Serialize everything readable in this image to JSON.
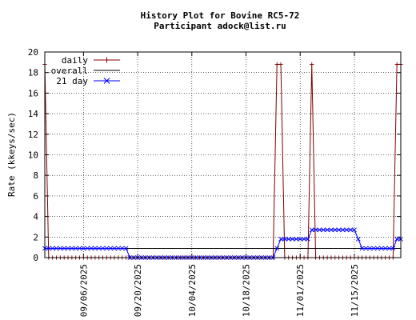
{
  "chart_data": {
    "type": "line",
    "title": "History Plot for Bovine RC5-72",
    "subtitle": "Participant adock@list.ru",
    "xlabel": "",
    "ylabel": "Rate (kkeys/sec)",
    "x_type": "date",
    "xlim": [
      "2025-08-27",
      "2025-11-27"
    ],
    "ylim": [
      0,
      20
    ],
    "y_ticks": [
      "0",
      "2",
      "4",
      "6",
      "8",
      "10",
      "12",
      "14",
      "16",
      "18",
      "20"
    ],
    "x_ticks": [
      {
        "date": "2025-09-06",
        "label": "09/06/2025"
      },
      {
        "date": "2025-09-20",
        "label": "09/20/2025"
      },
      {
        "date": "2025-10-04",
        "label": "10/04/2025"
      },
      {
        "date": "2025-10-18",
        "label": "10/18/2025"
      },
      {
        "date": "2025-11-01",
        "label": "11/01/2025"
      },
      {
        "date": "2025-11-15",
        "label": "11/15/2025"
      }
    ],
    "grid": true,
    "legend_position": "top-left",
    "series": [
      {
        "name": "daily",
        "color": "#800000",
        "marker": "plus",
        "points": [
          {
            "x": "2025-08-27",
            "y": 18.8
          },
          {
            "x": "2025-08-28",
            "y": 0
          },
          {
            "x": "2025-10-25",
            "y": 0
          },
          {
            "x": "2025-10-26",
            "y": 18.8
          },
          {
            "x": "2025-10-27",
            "y": 18.8
          },
          {
            "x": "2025-10-28",
            "y": 0
          },
          {
            "x": "2025-11-03",
            "y": 0
          },
          {
            "x": "2025-11-04",
            "y": 18.8
          },
          {
            "x": "2025-11-05",
            "y": 0
          },
          {
            "x": "2025-11-25",
            "y": 0
          },
          {
            "x": "2025-11-26",
            "y": 18.8
          },
          {
            "x": "2025-11-27",
            "y": 18.8
          }
        ]
      },
      {
        "name": "overall",
        "color": "#000000",
        "marker": "none",
        "points": [
          {
            "x": "2025-08-27",
            "y": 0.9
          },
          {
            "x": "2025-11-27",
            "y": 0.9
          }
        ]
      },
      {
        "name": "21 day",
        "color": "#0000ff",
        "marker": "cross",
        "points": [
          {
            "x": "2025-08-27",
            "y": 0.9
          },
          {
            "x": "2025-09-17",
            "y": 0.9
          },
          {
            "x": "2025-09-18",
            "y": 0
          },
          {
            "x": "2025-10-25",
            "y": 0
          },
          {
            "x": "2025-10-26",
            "y": 0.9
          },
          {
            "x": "2025-10-27",
            "y": 1.8
          },
          {
            "x": "2025-11-03",
            "y": 1.8
          },
          {
            "x": "2025-11-04",
            "y": 2.7
          },
          {
            "x": "2025-11-15",
            "y": 2.7
          },
          {
            "x": "2025-11-16",
            "y": 1.8
          },
          {
            "x": "2025-11-17",
            "y": 0.9
          },
          {
            "x": "2025-11-25",
            "y": 0.9
          },
          {
            "x": "2025-11-26",
            "y": 1.8
          },
          {
            "x": "2025-11-27",
            "y": 1.8
          }
        ]
      }
    ]
  }
}
